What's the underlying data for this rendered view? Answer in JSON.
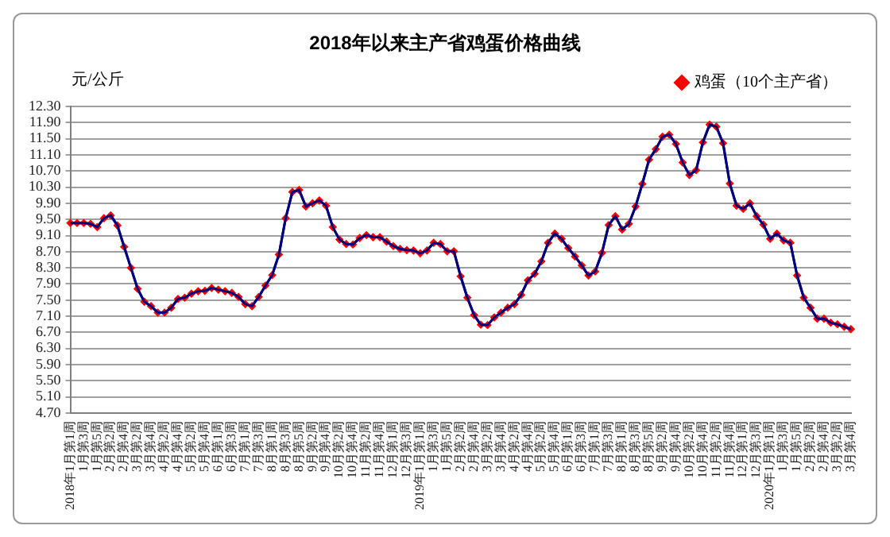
{
  "chart_data": {
    "type": "line",
    "title": "2018年以来主产省鸡蛋价格曲线",
    "ylabel": "元/公斤",
    "categories": [
      "2018年1月第1周",
      null,
      "1月第3周",
      null,
      "1月第5周",
      null,
      "2月第2周",
      null,
      "2月第4周",
      null,
      "3月第2周",
      null,
      "3月第4周",
      null,
      "4月第2周",
      null,
      "4月第4周",
      null,
      "5月第2周",
      null,
      "5月第4周",
      null,
      "6月第1周",
      null,
      "6月第3周",
      null,
      "7月第1周",
      null,
      "7月第3周",
      null,
      "8月第1周",
      null,
      "8月第3周",
      null,
      "8月第5周",
      null,
      "9月第2周",
      null,
      "9月第4周",
      null,
      "10月第2周",
      null,
      "10月第4周",
      null,
      "11月第2周",
      null,
      "11月第4周",
      null,
      "12月第1周",
      null,
      "12月第3周",
      null,
      "2019年1月第1周",
      null,
      "1月第3周",
      null,
      "1月第5周",
      null,
      "2月第2周",
      null,
      "2月第4周",
      null,
      "3月第2周",
      null,
      "3月第4周",
      null,
      "4月第2周",
      null,
      "4月第4周",
      null,
      "5月第2周",
      null,
      "5月第4周",
      null,
      "6月第1周",
      null,
      "6月第3周",
      null,
      "7月第1周",
      null,
      "7月第3周",
      null,
      "8月第1周",
      null,
      "8月第3周",
      null,
      "8月第5周",
      null,
      "9月第2周",
      null,
      "9月第4周",
      null,
      "10月第2周",
      null,
      "10月第4周",
      null,
      "11月第2周",
      null,
      "11月第4周",
      null,
      "12月第1周",
      null,
      "12月第3周",
      null,
      "2020年1月第1周",
      null,
      "1月第3周",
      null,
      "1月第5周",
      null,
      "2月第2周",
      null,
      "2月第4周",
      null,
      "3月第2周",
      null,
      "3月第4周"
    ],
    "series": [
      {
        "name": "鸡蛋（10个主产省）",
        "color": "#ff0000",
        "values": [
          9.41,
          9.41,
          9.41,
          9.39,
          9.31,
          9.53,
          9.6,
          9.35,
          8.82,
          8.3,
          7.78,
          7.46,
          7.35,
          7.19,
          7.19,
          7.31,
          7.53,
          7.56,
          7.66,
          7.72,
          7.73,
          7.8,
          7.76,
          7.72,
          7.68,
          7.58,
          7.4,
          7.35,
          7.58,
          7.86,
          8.12,
          8.63,
          9.53,
          10.18,
          10.23,
          9.82,
          9.9,
          9.97,
          9.84,
          9.31,
          9.0,
          8.89,
          8.88,
          9.04,
          9.11,
          9.06,
          9.06,
          8.95,
          8.84,
          8.77,
          8.74,
          8.73,
          8.66,
          8.73,
          8.92,
          8.89,
          8.71,
          8.71,
          8.09,
          7.56,
          7.13,
          6.89,
          6.88,
          7.07,
          7.19,
          7.31,
          7.4,
          7.63,
          7.99,
          8.15,
          8.46,
          8.92,
          9.15,
          9.02,
          8.79,
          8.58,
          8.36,
          8.11,
          8.21,
          8.67,
          9.36,
          9.58,
          9.25,
          9.39,
          9.82,
          10.38,
          10.98,
          11.24,
          11.55,
          11.6,
          11.37,
          10.91,
          10.6,
          10.72,
          11.41,
          11.85,
          11.8,
          11.39,
          10.39,
          9.84,
          9.76,
          9.9,
          9.58,
          9.37,
          9.02,
          9.15,
          8.98,
          8.92,
          8.11,
          7.56,
          7.31,
          7.04,
          7.04,
          6.94,
          6.9,
          6.84,
          6.78
        ]
      }
    ],
    "ylim": [
      4.7,
      12.3
    ],
    "yticks": [
      {
        "value": 4.7,
        "label": "4.70"
      },
      {
        "value": 5.1,
        "label": "5.10"
      },
      {
        "value": 5.5,
        "label": "5.50"
      },
      {
        "value": 5.9,
        "label": "5.90"
      },
      {
        "value": 6.3,
        "label": "6.30"
      },
      {
        "value": 6.7,
        "label": "6.70"
      },
      {
        "value": 7.1,
        "label": "7.10"
      },
      {
        "value": 7.5,
        "label": "7.50"
      },
      {
        "value": 7.9,
        "label": "7.90"
      },
      {
        "value": 8.3,
        "label": "8.30"
      },
      {
        "value": 8.7,
        "label": "8.70"
      },
      {
        "value": 9.1,
        "label": "9.10"
      },
      {
        "value": 9.5,
        "label": "9.50"
      },
      {
        "value": 9.9,
        "label": "9.90"
      },
      {
        "value": 10.3,
        "label": "10.30"
      },
      {
        "value": 10.7,
        "label": "10.70"
      },
      {
        "value": 11.1,
        "label": "11.10"
      },
      {
        "value": 11.5,
        "label": "11.50"
      },
      {
        "value": 11.9,
        "label": "11.90"
      },
      {
        "value": 12.3,
        "label": "12.30"
      }
    ],
    "grid": "y",
    "legend": "top right",
    "marker": "diamond",
    "line_style": "solid"
  }
}
